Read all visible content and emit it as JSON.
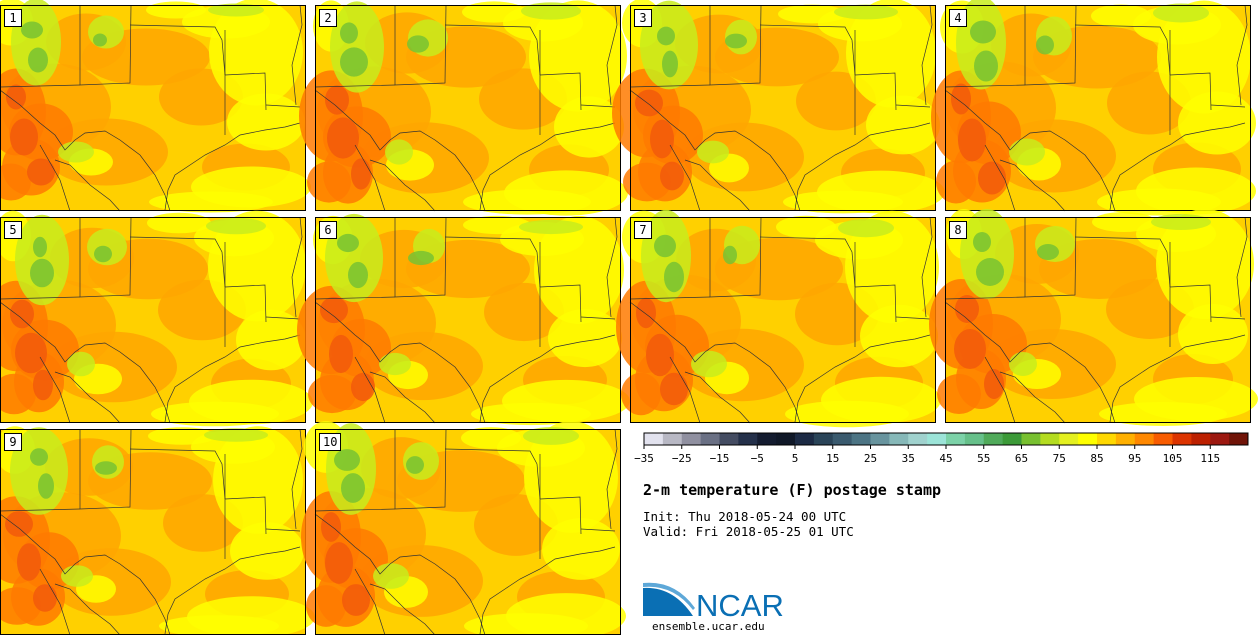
{
  "title": "2-m temperature (F) postage stamp",
  "init_label": "Init: Thu 2018-05-24 00 UTC",
  "valid_label": "Valid: Fri 2018-05-25 01 UTC",
  "logo_text": "NCAR",
  "site": "ensemble.ucar.edu",
  "members": [
    "1",
    "2",
    "3",
    "4",
    "5",
    "6",
    "7",
    "8",
    "9",
    "10"
  ],
  "colorbar": {
    "min": -35,
    "max": 120,
    "step": 5,
    "tick_labels": [
      "−35",
      "−25",
      "−15",
      "−5",
      "5",
      "15",
      "25",
      "35",
      "45",
      "55",
      "65",
      "75",
      "85",
      "95",
      "105",
      "115"
    ],
    "colors": [
      "#e2e2ee",
      "#b8b8c4",
      "#9090a0",
      "#6a7084",
      "#444c62",
      "#24304a",
      "#141c30",
      "#101828",
      "#1c2a44",
      "#2a4458",
      "#3a5a6e",
      "#4c7484",
      "#68949e",
      "#86b8b8",
      "#a0d2ce",
      "#9ce4d8",
      "#7cd2a8",
      "#66c08a",
      "#50aa5a",
      "#3c9a38",
      "#78c030",
      "#b4dc20",
      "#e4f020",
      "#ffff00",
      "#ffd800",
      "#ffb000",
      "#ff8800",
      "#f85c00",
      "#dc3400",
      "#bc2000",
      "#9c1810",
      "#701408"
    ]
  },
  "map_colors": {
    "base": "#ffd000",
    "warm": "#ffa600",
    "hot": "#ff7a00",
    "hotter": "#f25a0a",
    "cool": "#ffff00",
    "cooler": "#c8ec1c",
    "green": "#78c232",
    "lines": "#333333"
  },
  "ncar_blue": "#0a6fb4"
}
